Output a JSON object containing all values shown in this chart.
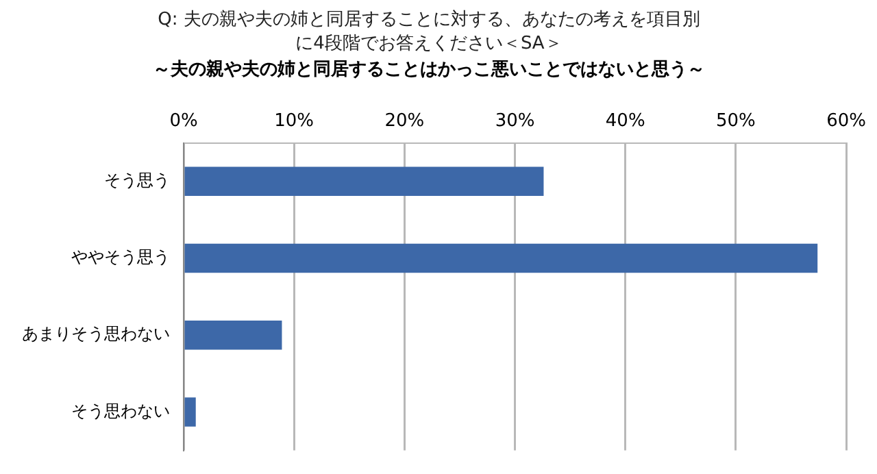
{
  "chart_data": {
    "type": "bar",
    "orientation": "horizontal",
    "title": "Q: 夫の親や夫の姉と同居することに対する、あなたの考えを項目別に4段階でお答えください＜SA＞",
    "subtitle": "～夫の親や夫の姉と同居することはかっこ悪いことではないと思う～",
    "categories": [
      "そう思う",
      "ややそう思う",
      "あまりそう思わない",
      "そう思わない"
    ],
    "values": [
      32.6,
      57.4,
      8.9,
      1.1
    ],
    "color": "#3d68a8",
    "xlim": [
      0,
      60
    ],
    "xticks": [
      {
        "value": 0,
        "label": "0%"
      },
      {
        "value": 10,
        "label": "10%"
      },
      {
        "value": 20,
        "label": "20%"
      },
      {
        "value": 30,
        "label": "30%"
      },
      {
        "value": 40,
        "label": "40%"
      },
      {
        "value": 50,
        "label": "50%"
      },
      {
        "value": 60,
        "label": "60%"
      }
    ],
    "grid": "x",
    "legend": false
  }
}
